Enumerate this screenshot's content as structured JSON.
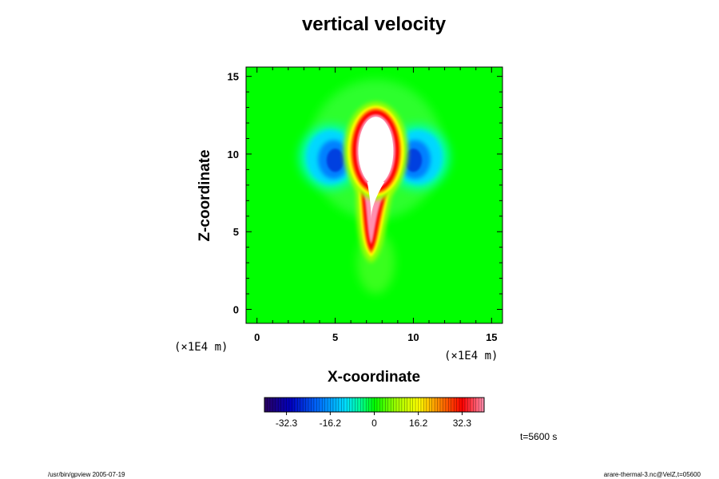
{
  "chart_data": {
    "type": "heatmap",
    "title": "vertical velocity",
    "xlabel": "X-coordinate",
    "ylabel": "Z-coordinate",
    "x_unit": "(×1E4 m)",
    "z_unit": "(×1E4 m)",
    "xlim": [
      -0.7,
      15.7
    ],
    "ylim": [
      -0.9,
      15.6
    ],
    "x_ticks": [
      0,
      5,
      10,
      15
    ],
    "y_ticks": [
      0,
      5,
      10,
      15
    ],
    "colorbar": {
      "min": -40.4,
      "max": 40.4,
      "ticks": [
        -32.3,
        -16.2,
        0,
        16.2,
        32.3
      ],
      "tick_labels": [
        "-32.3",
        "-16.2",
        "0",
        "16.2",
        "32.3"
      ],
      "colors": [
        "#2a0060",
        "#0000c0",
        "#0060ff",
        "#00c8ff",
        "#00ff80",
        "#00ff00",
        "#a0ff00",
        "#ffff00",
        "#ff8000",
        "#ff0000",
        "#ff80a0"
      ]
    },
    "background_value": 0,
    "features": [
      {
        "name": "updraft core",
        "x": 7.6,
        "z": 10.0,
        "peak_value": 50,
        "saturated": true
      },
      {
        "name": "updraft stem",
        "x": 7.3,
        "z": 5.5,
        "peak_value": 28
      },
      {
        "name": "left downdraft",
        "x": 4.7,
        "z": 9.8,
        "peak_value": -28
      },
      {
        "name": "right downdraft",
        "x": 10.3,
        "z": 9.8,
        "peak_value": -28
      }
    ],
    "time_label": "t=5600 s"
  },
  "footer": {
    "left": "/usr/bin/gpview 2005-07-19",
    "right": "arare-thermal-3.nc@VelZ,t=05600"
  },
  "colors": {
    "background": "#00ff00",
    "saturated": "#ffffff"
  }
}
